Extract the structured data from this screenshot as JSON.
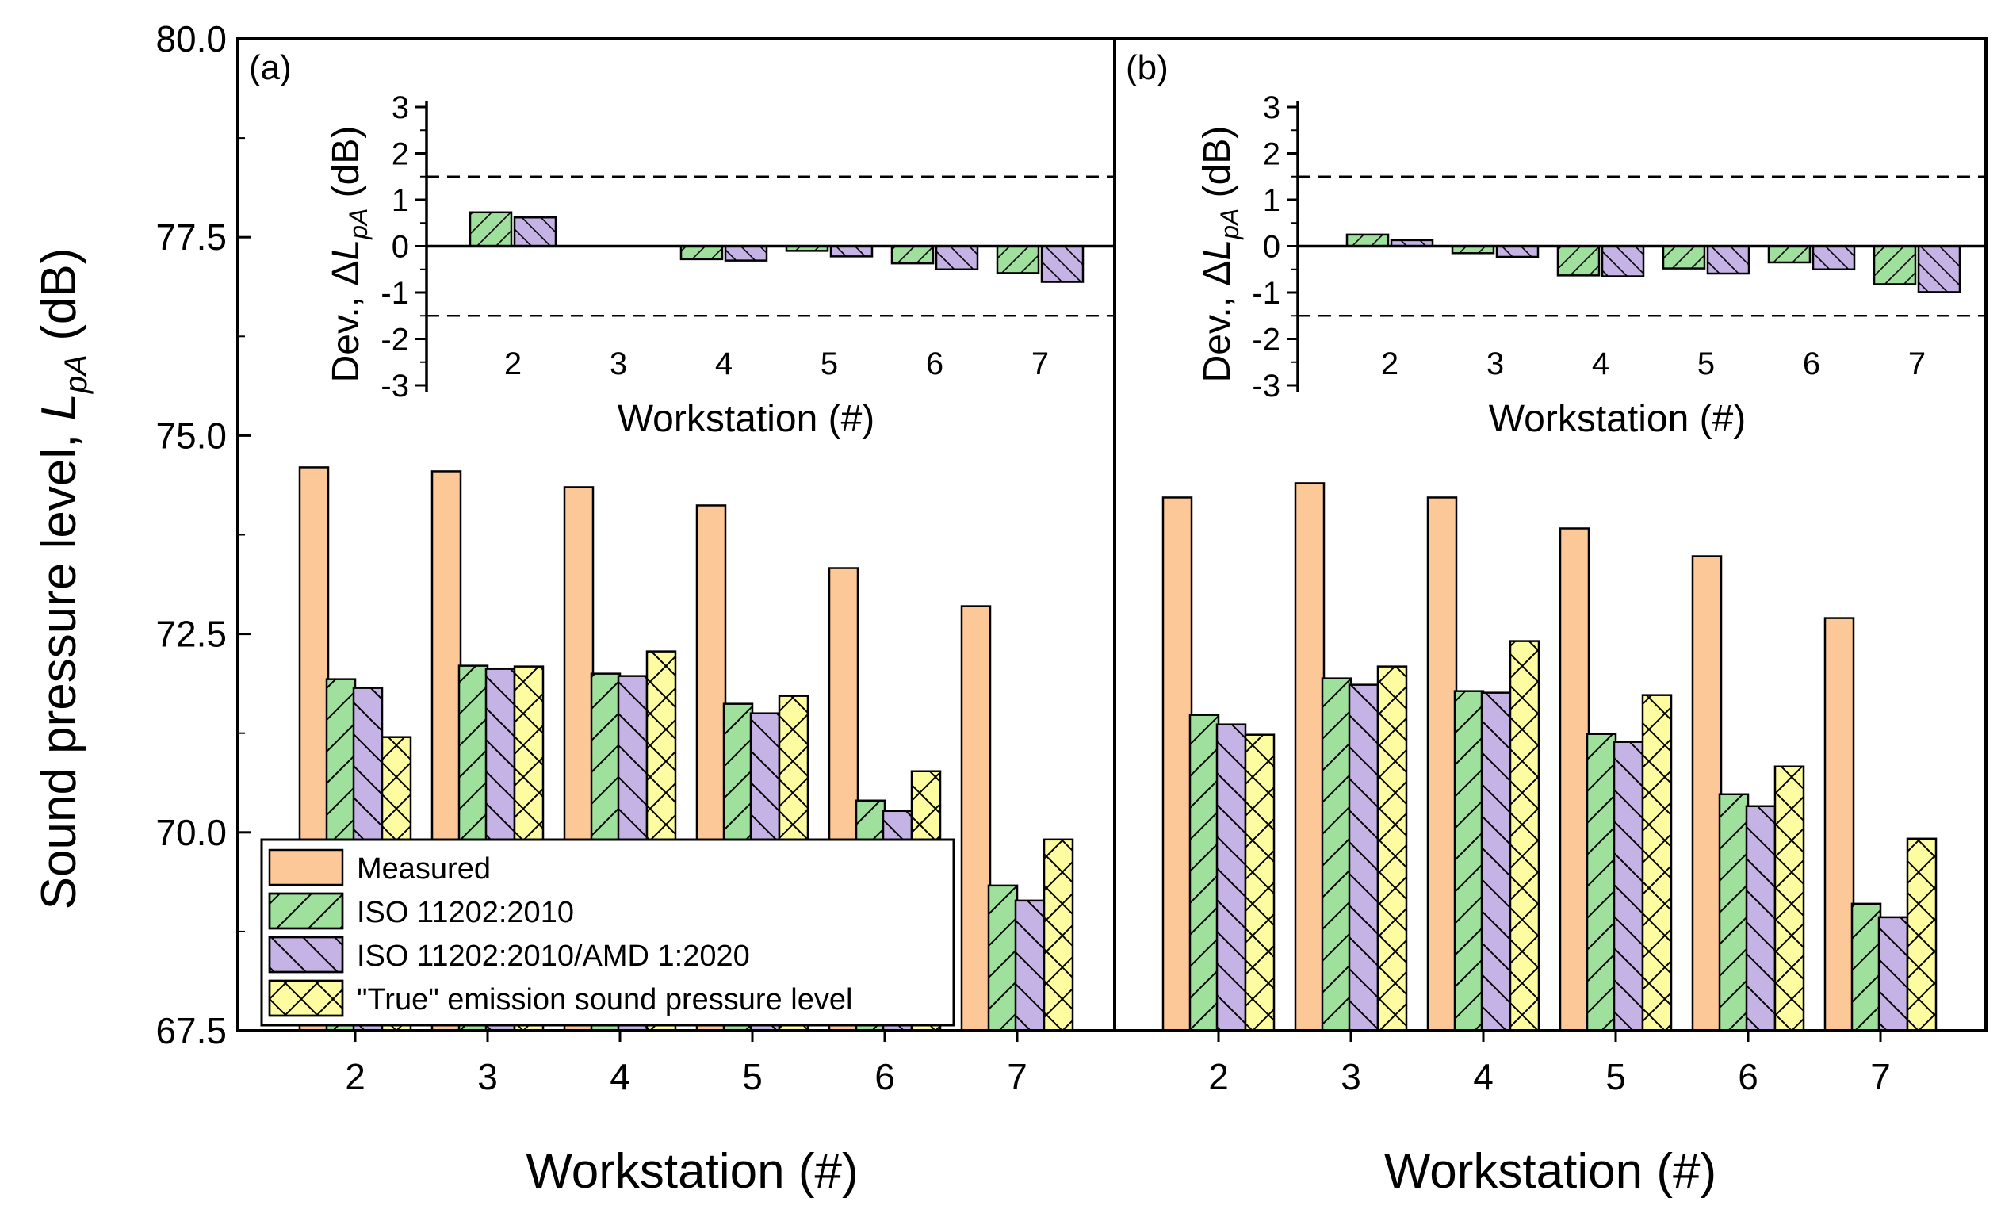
{
  "colors": {
    "measured": "#fdc897",
    "iso2010": "#9ee09c",
    "amd2020": "#c6b3e6",
    "true_level": "#fdfca0"
  },
  "y_title_prefix": "Sound pressure level, ",
  "y_title_symbol": "L",
  "y_title_sub": "pA",
  "y_title_suffix": " (dB)",
  "inset_y_title_prefix": "Dev., Δ",
  "inset_y_title_symbol": "L",
  "inset_y_title_sub": "pA",
  "inset_y_title_suffix": " (dB)",
  "chart_data": [
    {
      "type": "bar",
      "panel": "(a)",
      "xlabel": "Workstation (#)",
      "ylabel": "Sound pressure level, LpA (dB)",
      "ylim": [
        67.5,
        80.0
      ],
      "yticks": [
        "67.5",
        "70.0",
        "72.5",
        "75.0",
        "77.5",
        "80.0"
      ],
      "categories": [
        "2",
        "3",
        "4",
        "5",
        "6",
        "7"
      ],
      "series": [
        {
          "name": "Measured",
          "values": [
            74.6,
            74.55,
            74.35,
            74.12,
            73.33,
            72.85
          ]
        },
        {
          "name": "ISO 11202:2010",
          "values": [
            71.93,
            72.1,
            72.0,
            71.62,
            70.4,
            69.33
          ]
        },
        {
          "name": "ISO 11202:2010/AMD 1:2020",
          "values": [
            71.82,
            72.06,
            71.97,
            71.5,
            70.27,
            69.14
          ]
        },
        {
          "name": "\"True\" emission sound pressure level",
          "values": [
            71.2,
            72.09,
            72.28,
            71.72,
            70.77,
            69.91
          ]
        }
      ],
      "legend": {
        "position": "lower-left",
        "entries": [
          "Measured",
          "ISO 11202:2010",
          "ISO 11202:2010/AMD 1:2020",
          "\"True\" emission sound pressure level"
        ]
      },
      "inset": {
        "xlabel": "Workstation (#)",
        "ylabel": "Dev., ΔLpA (dB)",
        "ylim": [
          -3,
          3
        ],
        "yticks": [
          "-3",
          "-2",
          "-1",
          "0",
          "1",
          "2",
          "3"
        ],
        "categories": [
          "2",
          "3",
          "4",
          "5",
          "6",
          "7"
        ],
        "reference_lines": [
          1.5,
          -1.5
        ],
        "series": [
          {
            "name": "ISO 11202:2010",
            "values": [
              0.73,
              0.0,
              -0.28,
              -0.1,
              -0.37,
              -0.58
            ]
          },
          {
            "name": "ISO 11202:2010/AMD 1:2020",
            "values": [
              0.62,
              0.0,
              -0.31,
              -0.22,
              -0.5,
              -0.77
            ]
          }
        ]
      }
    },
    {
      "type": "bar",
      "panel": "(b)",
      "xlabel": "Workstation (#)",
      "ylabel": "",
      "ylim": [
        67.5,
        80.0
      ],
      "categories": [
        "2",
        "3",
        "4",
        "5",
        "6",
        "7"
      ],
      "series": [
        {
          "name": "Measured",
          "values": [
            74.22,
            74.4,
            74.22,
            73.83,
            73.48,
            72.7
          ]
        },
        {
          "name": "ISO 11202:2010",
          "values": [
            71.48,
            71.94,
            71.78,
            71.24,
            70.48,
            69.1
          ]
        },
        {
          "name": "ISO 11202:2010/AMD 1:2020",
          "values": [
            71.36,
            71.86,
            71.76,
            71.14,
            70.33,
            68.93
          ]
        },
        {
          "name": "\"True\" emission sound pressure level",
          "values": [
            71.23,
            72.09,
            72.41,
            71.73,
            70.83,
            69.92
          ]
        }
      ],
      "inset": {
        "xlabel": "Workstation (#)",
        "ylabel": "Dev., ΔLpA (dB)",
        "ylim": [
          -3,
          3
        ],
        "yticks": [
          "-3",
          "-2",
          "-1",
          "0",
          "1",
          "2",
          "3"
        ],
        "categories": [
          "2",
          "3",
          "4",
          "5",
          "6",
          "7"
        ],
        "reference_lines": [
          1.5,
          -1.5
        ],
        "series": [
          {
            "name": "ISO 11202:2010",
            "values": [
              0.25,
              -0.15,
              -0.63,
              -0.48,
              -0.35,
              -0.82
            ]
          },
          {
            "name": "ISO 11202:2010/AMD 1:2020",
            "values": [
              0.13,
              -0.23,
              -0.65,
              -0.59,
              -0.5,
              -0.99
            ]
          }
        ]
      }
    }
  ]
}
